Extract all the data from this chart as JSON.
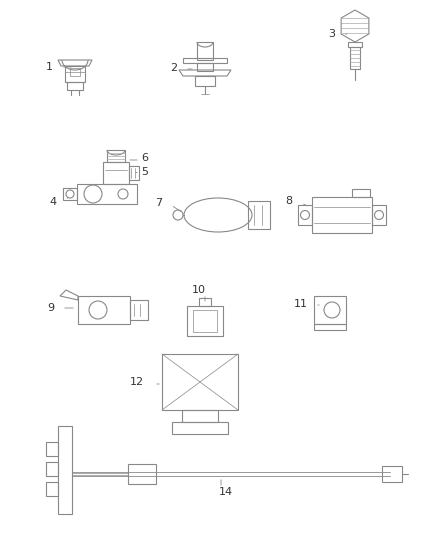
{
  "bg_color": "#ffffff",
  "line_color": "#888888",
  "text_color": "#333333",
  "fig_width": 4.38,
  "fig_height": 5.33,
  "dpi": 100
}
